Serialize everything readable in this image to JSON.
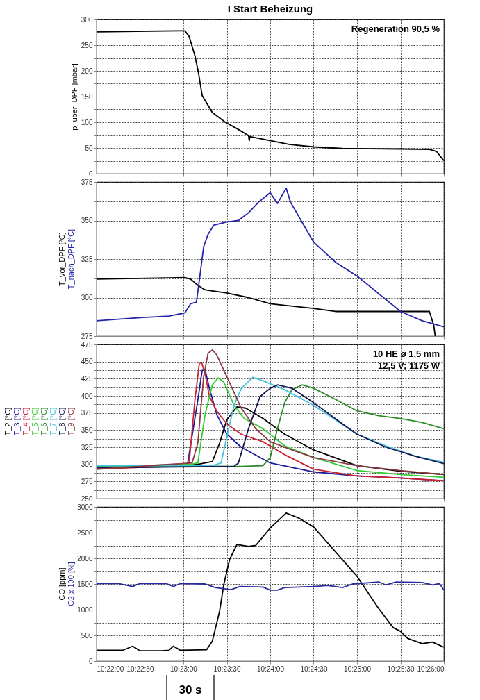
{
  "chart_data": [
    {
      "type": "line",
      "title": "I  Start Beheizung",
      "ylabel": "p_über_DPF [mbar]",
      "grid": true,
      "tick_labels": "y",
      "xlim": [
        10.36667,
        10.43333
      ],
      "ylim": [
        0,
        300
      ],
      "xticks": [
        {
          "value": 10.36667,
          "label": null
        },
        {
          "value": 10.375,
          "label": null
        },
        {
          "value": 10.38333,
          "label": null
        },
        {
          "value": 10.39167,
          "label": null
        },
        {
          "value": 10.4,
          "label": null
        },
        {
          "value": 10.40833,
          "label": null
        },
        {
          "value": 10.41667,
          "label": null
        },
        {
          "value": 10.425,
          "label": null
        },
        {
          "value": 10.43333,
          "label": null
        }
      ],
      "yticks": [
        0,
        {
          "value": 25,
          "label": null
        },
        50,
        {
          "value": 75,
          "label": null
        },
        100,
        {
          "value": 125,
          "label": null
        },
        150,
        {
          "value": 175,
          "label": null
        },
        200,
        {
          "value": 225,
          "label": null
        },
        250,
        {
          "value": 275,
          "label": null
        },
        300
      ],
      "annotations": [
        "Regeneration 90,5 %"
      ],
      "series": [
        {
          "color": "#000000",
          "x": [
            10.36667,
            10.38361,
            10.38444,
            10.38556,
            10.38625,
            10.38694,
            10.38889,
            10.39139,
            10.39389,
            10.39583,
            10.39597,
            10.39611,
            10.39861,
            10.40361,
            10.40833,
            10.41389,
            10.425,
            10.43056,
            10.43194,
            10.43333
          ],
          "values": [
            276,
            278,
            267,
            229,
            195,
            152,
            119,
            100,
            86,
            74,
            64,
            72,
            67,
            57,
            52,
            49,
            48,
            47,
            43,
            25
          ]
        }
      ]
    },
    {
      "type": "line",
      "grid": true,
      "tick_labels": "y",
      "xlim": [
        10.36667,
        10.43333
      ],
      "ylim": [
        275,
        375
      ],
      "xticks": [
        {
          "value": 10.36667,
          "label": null
        },
        {
          "value": 10.375,
          "label": null
        },
        {
          "value": 10.38333,
          "label": null
        },
        {
          "value": 10.39167,
          "label": null
        },
        {
          "value": 10.4,
          "label": null
        },
        {
          "value": 10.40833,
          "label": null
        },
        {
          "value": 10.41667,
          "label": null
        },
        {
          "value": 10.425,
          "label": null
        },
        {
          "value": 10.43333,
          "label": null
        }
      ],
      "yticks": [
        275,
        {
          "value": 287.5,
          "label": null
        },
        300,
        {
          "value": 312.5,
          "label": null
        },
        325,
        {
          "value": 337.5,
          "label": null
        },
        350,
        {
          "value": 362.5,
          "label": null
        },
        375
      ],
      "series": [
        {
          "name": "T_vor_DPF [°C]",
          "color": "#000000",
          "x": [
            10.36667,
            10.38361,
            10.38472,
            10.38611,
            10.3875,
            10.39167,
            10.39583,
            10.4,
            10.40833,
            10.4125,
            10.425,
            10.43056,
            10.43139,
            10.43167
          ],
          "values": [
            312,
            313,
            312,
            308,
            305,
            303,
            300,
            296,
            293,
            291,
            291,
            291,
            282,
            275
          ]
        },
        {
          "name": "T_nach_DPF [°C]",
          "color": "#2222aa",
          "x": [
            10.36667,
            10.375,
            10.38056,
            10.38361,
            10.38472,
            10.38583,
            10.38639,
            10.38722,
            10.38806,
            10.38917,
            10.39167,
            10.39389,
            10.39583,
            10.39778,
            10.4,
            10.40139,
            10.40306,
            10.40389,
            10.40694,
            10.40833,
            10.4125,
            10.41667,
            10.425,
            10.42917,
            10.43333
          ],
          "values": [
            285,
            287,
            288,
            290,
            296,
            297,
            311,
            333,
            341,
            347,
            349,
            350,
            355,
            362,
            368,
            361,
            371,
            362,
            344,
            336,
            323,
            314,
            291,
            285,
            281
          ]
        }
      ]
    },
    {
      "type": "line",
      "grid": true,
      "tick_labels": "y",
      "xlim": [
        10.36667,
        10.43333
      ],
      "ylim": [
        250,
        475
      ],
      "xticks": [
        {
          "value": 10.36667,
          "label": null
        },
        {
          "value": 10.375,
          "label": null
        },
        {
          "value": 10.38333,
          "label": null
        },
        {
          "value": 10.39167,
          "label": null
        },
        {
          "value": 10.4,
          "label": null
        },
        {
          "value": 10.40833,
          "label": null
        },
        {
          "value": 10.41667,
          "label": null
        },
        {
          "value": 10.425,
          "label": null
        },
        {
          "value": 10.43333,
          "label": null
        }
      ],
      "yticks": [
        250,
        {
          "value": 262.5,
          "label": null
        },
        275,
        {
          "value": 287.5,
          "label": null
        },
        300,
        {
          "value": 312.5,
          "label": null
        },
        325,
        {
          "value": 337.5,
          "label": null
        },
        350,
        {
          "value": 362.5,
          "label": null
        },
        375,
        {
          "value": 387.5,
          "label": null
        },
        400,
        {
          "value": 412.5,
          "label": null
        },
        425,
        {
          "value": 437.5,
          "label": null
        },
        450,
        {
          "value": 462.5,
          "label": null
        },
        475
      ],
      "annotations": [
        "10 HE ø 1,5 mm",
        "12,5 V; 1175 W"
      ],
      "series": [
        {
          "name": "T_2 [°C]",
          "color": "#000000",
          "x": [
            10.36667,
            10.38611,
            10.38889,
            10.39028,
            10.39167,
            10.39361,
            10.39528,
            10.39861,
            10.40278,
            10.40833,
            10.41667,
            10.425,
            10.43333
          ],
          "values": [
            297,
            300,
            304,
            331,
            365,
            384,
            382,
            367,
            344,
            321,
            298,
            290,
            285
          ]
        },
        {
          "name": "T_3 [°C]",
          "color": "#1c1c9c",
          "x": [
            10.36667,
            10.38333,
            10.38417,
            10.38611,
            10.38694,
            10.3875,
            10.38833,
            10.38972,
            10.39167,
            10.39444,
            10.4,
            10.40833,
            10.41667,
            10.425,
            10.43333
          ],
          "values": [
            295,
            297,
            302,
            394,
            437,
            438,
            411,
            373,
            344,
            325,
            302,
            289,
            283,
            280,
            276
          ]
        },
        {
          "name": "T_4 [°C]",
          "color": "#cc2233",
          "x": [
            10.36667,
            10.38333,
            10.38444,
            10.38556,
            10.38639,
            10.38681,
            10.3875,
            10.38833,
            10.38972,
            10.39167,
            10.39444,
            10.39861,
            10.40278,
            10.40833,
            10.41667,
            10.425,
            10.43333
          ],
          "values": [
            293,
            298,
            302,
            395,
            447,
            449,
            432,
            399,
            378,
            359,
            344,
            333,
            314,
            293,
            283,
            280,
            276
          ]
        },
        {
          "name": "T_5 [°C]",
          "color": "#33cc33",
          "x": [
            10.36667,
            10.38472,
            10.38611,
            10.3875,
            10.38889,
            10.39,
            10.39111,
            10.39306,
            10.395,
            10.39861,
            10.40278,
            10.40833,
            10.41667,
            10.425,
            10.43333
          ],
          "values": [
            297,
            300,
            302,
            373,
            416,
            426,
            420,
            386,
            367,
            352,
            327,
            310,
            291,
            285,
            281
          ]
        },
        {
          "name": "T_6 [°C]",
          "color": "#2a8a2a",
          "x": [
            10.36667,
            10.39444,
            10.39861,
            10.4,
            10.40139,
            10.40278,
            10.40417,
            10.40611,
            10.40833,
            10.4125,
            10.41667,
            10.42083,
            10.425,
            10.42917,
            10.43333
          ],
          "values": [
            298,
            297,
            298,
            310,
            352,
            390,
            409,
            416,
            411,
            395,
            378,
            371,
            367,
            361,
            352
          ]
        },
        {
          "name": "T_7 [°C]",
          "color": "#44c4dd",
          "x": [
            10.36667,
            10.38889,
            10.39056,
            10.39167,
            10.39306,
            10.39444,
            10.39667,
            10.39861,
            10.40278,
            10.40833,
            10.41667,
            10.42222,
            10.42778,
            10.43333
          ],
          "values": [
            298,
            298,
            302,
            340,
            386,
            411,
            427,
            422,
            409,
            386,
            344,
            327,
            312,
            303
          ]
        },
        {
          "name": "T_8 [°C]",
          "color": "#141450",
          "x": [
            10.36667,
            10.39306,
            10.39389,
            10.39583,
            10.39806,
            10.4,
            10.40139,
            10.40417,
            10.40833,
            10.41389,
            10.41667,
            10.42222,
            10.42778,
            10.43333
          ],
          "values": [
            295,
            297,
            302,
            352,
            399,
            411,
            416,
            411,
            390,
            359,
            344,
            325,
            312,
            301
          ]
        },
        {
          "name": "T_9 [°C]",
          "color": "#8b3a45",
          "x": [
            10.36667,
            10.385,
            10.38611,
            10.38722,
            10.38806,
            10.38889,
            10.38972,
            10.39167,
            10.39444,
            10.39722,
            10.4,
            10.40417,
            10.40833,
            10.41667,
            10.425,
            10.43333
          ],
          "values": [
            293,
            302,
            331,
            428,
            462,
            467,
            460,
            428,
            382,
            352,
            333,
            321,
            310,
            298,
            291,
            285
          ]
        }
      ]
    },
    {
      "type": "line",
      "grid": true,
      "xlim": [
        10.36667,
        10.43333
      ],
      "ylim": [
        0,
        3000
      ],
      "xticks": [
        {
          "value": 10.36667,
          "label": "10:22:00"
        },
        {
          "value": 10.375,
          "label": "10:22:30"
        },
        {
          "value": 10.38333,
          "label": "10:23:00"
        },
        {
          "value": 10.39167,
          "label": "10:23:30"
        },
        {
          "value": 10.4,
          "label": "10:24:00"
        },
        {
          "value": 10.40833,
          "label": "10:24:30"
        },
        {
          "value": 10.41667,
          "label": "10:25:00"
        },
        {
          "value": 10.425,
          "label": "10:25:30"
        },
        {
          "value": 10.43333,
          "label": "10:26:00"
        }
      ],
      "yticks": [
        0,
        {
          "value": 250,
          "label": null
        },
        500,
        {
          "value": 750,
          "label": null
        },
        1000,
        {
          "value": 1250,
          "label": null
        },
        1500,
        {
          "value": 1750,
          "label": null
        },
        2000,
        {
          "value": 2250,
          "label": null
        },
        2500,
        {
          "value": 2750,
          "label": null
        },
        3000
      ],
      "annotations": [
        "30 s"
      ],
      "series": [
        {
          "name": "CO [ppm]",
          "color": "#000000",
          "x": [
            10.36667,
            10.37167,
            10.37361,
            10.375,
            10.37917,
            10.38056,
            10.38139,
            10.38278,
            10.38778,
            10.38889,
            10.39028,
            10.39111,
            10.39222,
            10.39361,
            10.39583,
            10.39722,
            10.4,
            10.40306,
            10.40556,
            10.40833,
            10.4125,
            10.41667,
            10.42083,
            10.42361,
            10.425,
            10.42639,
            10.42917,
            10.43111,
            10.43333
          ],
          "values": [
            210,
            210,
            290,
            200,
            200,
            210,
            290,
            210,
            220,
            390,
            970,
            1500,
            1980,
            2270,
            2230,
            2250,
            2590,
            2880,
            2780,
            2610,
            2130,
            1650,
            1020,
            650,
            580,
            440,
            340,
            370,
            270
          ]
        },
        {
          "name": "O2 x 100 [%]",
          "color": "#2a2aa0",
          "x": [
            10.36667,
            10.37083,
            10.37361,
            10.375,
            10.38,
            10.38139,
            10.38278,
            10.3875,
            10.38944,
            10.39167,
            10.3925,
            10.39417,
            10.39861,
            10.4,
            10.40139,
            10.40278,
            10.40833,
            10.41111,
            10.41389,
            10.41583,
            10.42083,
            10.42222,
            10.42417,
            10.42917,
            10.43111,
            10.4325,
            10.43333
          ],
          "values": [
            1510,
            1510,
            1450,
            1510,
            1510,
            1450,
            1510,
            1500,
            1430,
            1400,
            1390,
            1450,
            1440,
            1380,
            1380,
            1430,
            1450,
            1470,
            1430,
            1500,
            1540,
            1480,
            1540,
            1530,
            1480,
            1510,
            1380
          ]
        }
      ]
    }
  ]
}
